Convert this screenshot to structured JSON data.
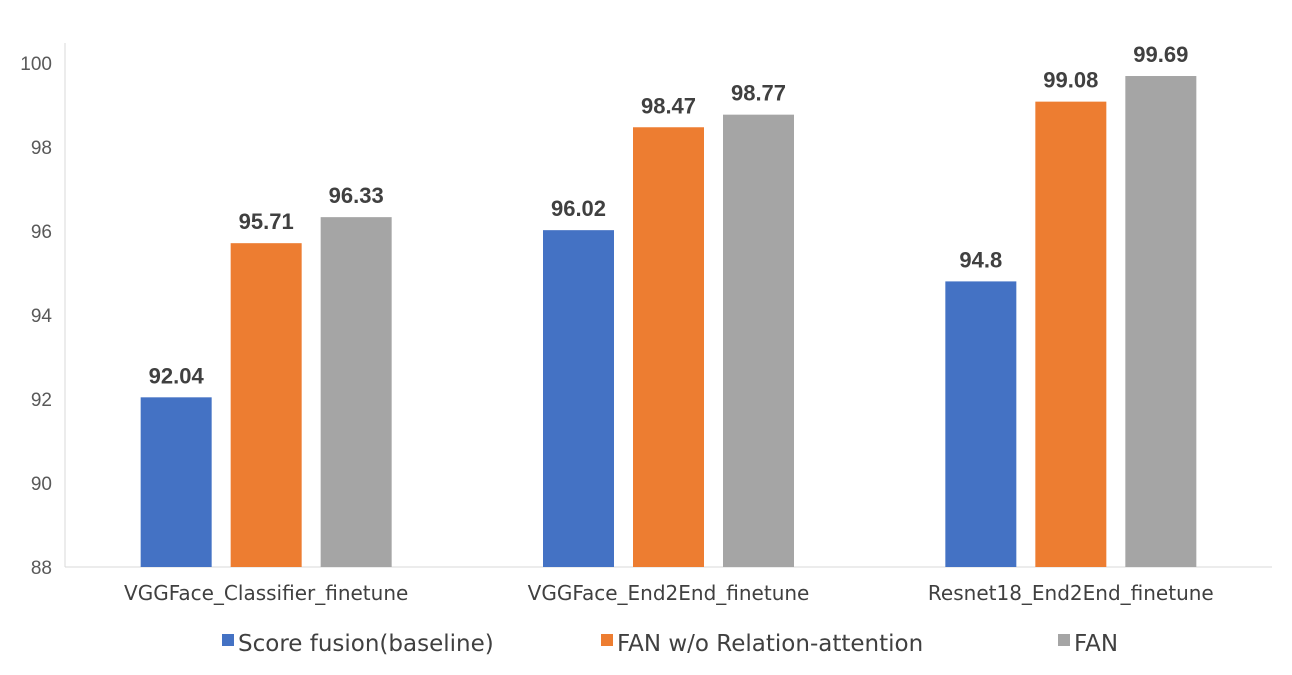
{
  "chart_data": {
    "type": "bar",
    "categories": [
      "VGGFace_Classifier_finetune",
      "VGGFace_End2End_finetune",
      "Resnet18_End2End_finetune"
    ],
    "series": [
      {
        "name": "Score fusion(baseline)",
        "color": "#4472C4",
        "values": [
          92.04,
          96.02,
          94.8
        ],
        "labels": [
          "92.04",
          "96.02",
          "94.8"
        ]
      },
      {
        "name": "FAN w/o Relation-attention",
        "color": "#ED7D31",
        "values": [
          95.71,
          98.47,
          99.08
        ],
        "labels": [
          "95.71",
          "98.47",
          "99.08"
        ]
      },
      {
        "name": "FAN",
        "color": "#A5A5A5",
        "values": [
          96.33,
          98.77,
          99.69
        ],
        "labels": [
          "96.33",
          "98.77",
          "99.69"
        ]
      }
    ],
    "ylim": [
      88,
      100
    ],
    "yticks": [
      88,
      90,
      92,
      94,
      96,
      98,
      100
    ],
    "ytick_labels": [
      "88",
      "90",
      "92",
      "94",
      "96",
      "98",
      "100"
    ],
    "grid": false,
    "legend_position": "bottom"
  }
}
